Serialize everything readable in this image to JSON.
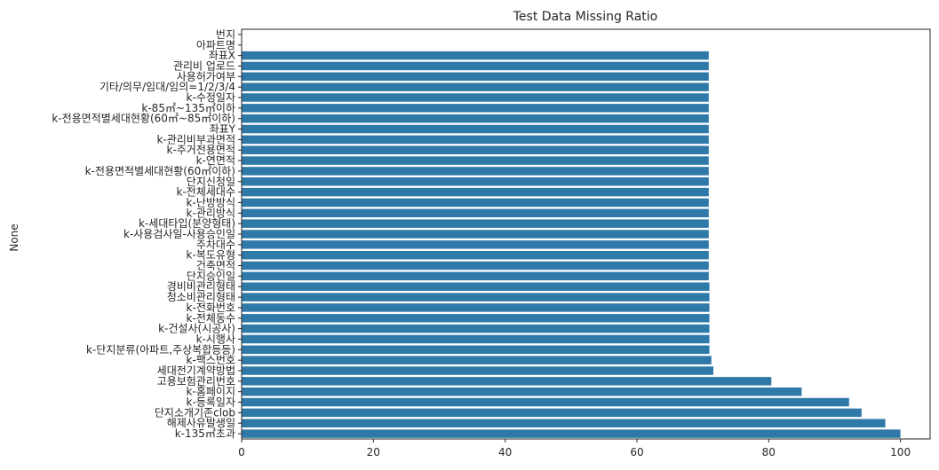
{
  "chart_data": {
    "type": "bar",
    "orientation": "horizontal",
    "title": "Test Data Missing Ratio",
    "xlabel": "",
    "ylabel": "None",
    "xlim": [
      0,
      104.5
    ],
    "xticks": [
      0,
      20,
      40,
      60,
      80,
      100
    ],
    "bar_color": "#2f79a9",
    "grid": false,
    "categories": [
      "번지",
      "아파트명",
      "좌표X",
      "관리비 업로드",
      "사용허가여부",
      "기타/의무/임대/임의=1/2/3/4",
      "k-수정일자",
      "k-85㎡~135㎡이하",
      "k-전용면적별세대현황(60㎡~85㎡이하)",
      "좌표Y",
      "k-관리비부과면적",
      "k-주거전용면적",
      "k-연면적",
      "k-전용면적별세대현황(60㎡이하)",
      "단지신청일",
      "k-전체세대수",
      "k-난방방식",
      "k-관리방식",
      "k-세대타입(분양형태)",
      "k-사용검사일-사용승인일",
      "주차대수",
      "k-복도유형",
      "건축면적",
      "단지승인일",
      "경비비관리형태",
      "청소비관리형태",
      "k-전화번호",
      "k-전체동수",
      "k-건설사(시공사)",
      "k-시행사",
      "k-단지분류(아파트,주상복합등등)",
      "k-팩스번호",
      "세대전기계약방법",
      "고용보험관리번호",
      "k-홈페이지",
      "k-등록일자",
      "단지소개기존clob",
      "해제사유발생일",
      "k-135㎡초과"
    ],
    "values": [
      0,
      0,
      70.9,
      70.9,
      70.9,
      70.9,
      70.9,
      70.9,
      70.9,
      70.9,
      70.9,
      70.9,
      70.9,
      70.9,
      70.9,
      70.9,
      70.9,
      70.9,
      70.9,
      70.9,
      70.9,
      70.9,
      70.9,
      70.9,
      71.0,
      71.0,
      71.0,
      71.0,
      71.0,
      71.0,
      71.0,
      71.3,
      71.6,
      80.4,
      85.0,
      92.2,
      94.1,
      97.7,
      100.0
    ]
  }
}
